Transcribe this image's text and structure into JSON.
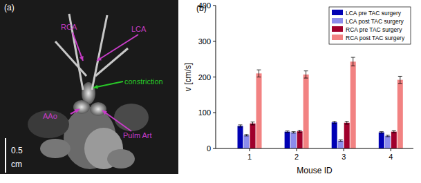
{
  "panel_a": {
    "label": "(a)",
    "annotations": [
      "RCA",
      "LCA",
      "constriction",
      "AAo",
      "Pulm Art"
    ],
    "scale_bar": [
      "0.5",
      "cm"
    ]
  },
  "chart_data": {
    "type": "bar",
    "title": "(b)",
    "x_label": "Mouse ID",
    "y_label": "v [cm/s]",
    "categories": [
      "1",
      "2",
      "3",
      "4"
    ],
    "ylim": [
      0,
      400
    ],
    "yticks": [
      0,
      100,
      200,
      300,
      400
    ],
    "grid": false,
    "legend": "upper right",
    "series": [
      {
        "name": "LCA pre TAC surgery",
        "color": "#0000b4",
        "values": [
          63,
          47,
          73,
          45
        ],
        "errors": [
          3,
          2,
          3,
          2
        ]
      },
      {
        "name": "LCA post TAC surgery",
        "color": "#8c8cec",
        "values": [
          37,
          45,
          22,
          35
        ],
        "errors": [
          2,
          2,
          2,
          2
        ]
      },
      {
        "name": "RCA pre TAC surgery",
        "color": "#a0002c",
        "values": [
          70,
          48,
          72,
          47
        ],
        "errors": [
          4,
          3,
          4,
          3
        ]
      },
      {
        "name": "RCA post TAC surgery",
        "color": "#f28282",
        "values": [
          210,
          207,
          243,
          192
        ],
        "errors": [
          10,
          10,
          12,
          10
        ]
      }
    ]
  }
}
